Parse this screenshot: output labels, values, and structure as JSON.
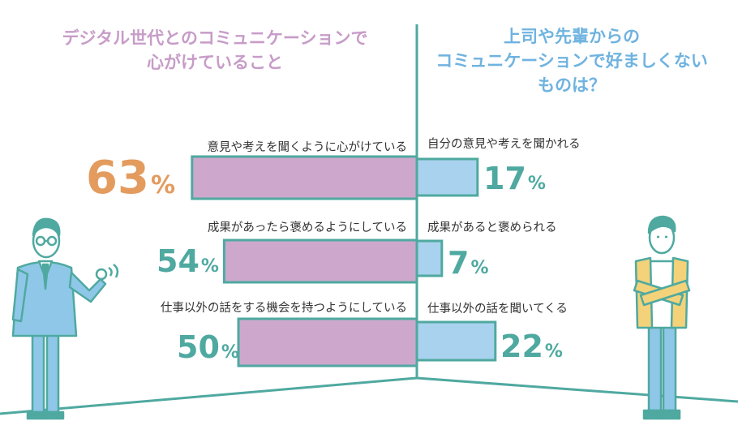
{
  "chart_data": [
    {
      "type": "bar",
      "orientation": "horizontal",
      "direction": "left",
      "title_lines": [
        "デジタル世代とのコミュニケーションで",
        "心がけていること"
      ],
      "categories": [
        "意見や考えを聞くように心がけている",
        "成果があったら褒めるようにしている",
        "仕事以外の話をする機会を持つようにしている"
      ],
      "values": [
        63,
        54,
        50
      ],
      "unit": "%",
      "bar_color": "#cda8cc",
      "highlight_color": "#e39b5e",
      "label_color": "#4fa9a0"
    },
    {
      "type": "bar",
      "orientation": "horizontal",
      "direction": "right",
      "title_lines": [
        "上司や先輩からの",
        "コミュニケーションで好ましくない",
        "ものは？"
      ],
      "categories": [
        "自分の意見や考えを聞かれる",
        "成果があると褒められる",
        "仕事以外の話を聞いてくる"
      ],
      "values": [
        17,
        7,
        22
      ],
      "unit": "%",
      "bar_color": "#a9d2ee",
      "label_color": "#4fa9a0"
    }
  ],
  "colors": {
    "outline": "#4fa9a0",
    "left_title": "#c79cc8",
    "right_title": "#6fb3e0"
  },
  "figures": [
    {
      "name": "businessman-in-suit",
      "icon": "person-glasses-icon"
    },
    {
      "name": "young-employee-arms-crossed",
      "icon": "person-arms-crossed-icon"
    }
  ]
}
